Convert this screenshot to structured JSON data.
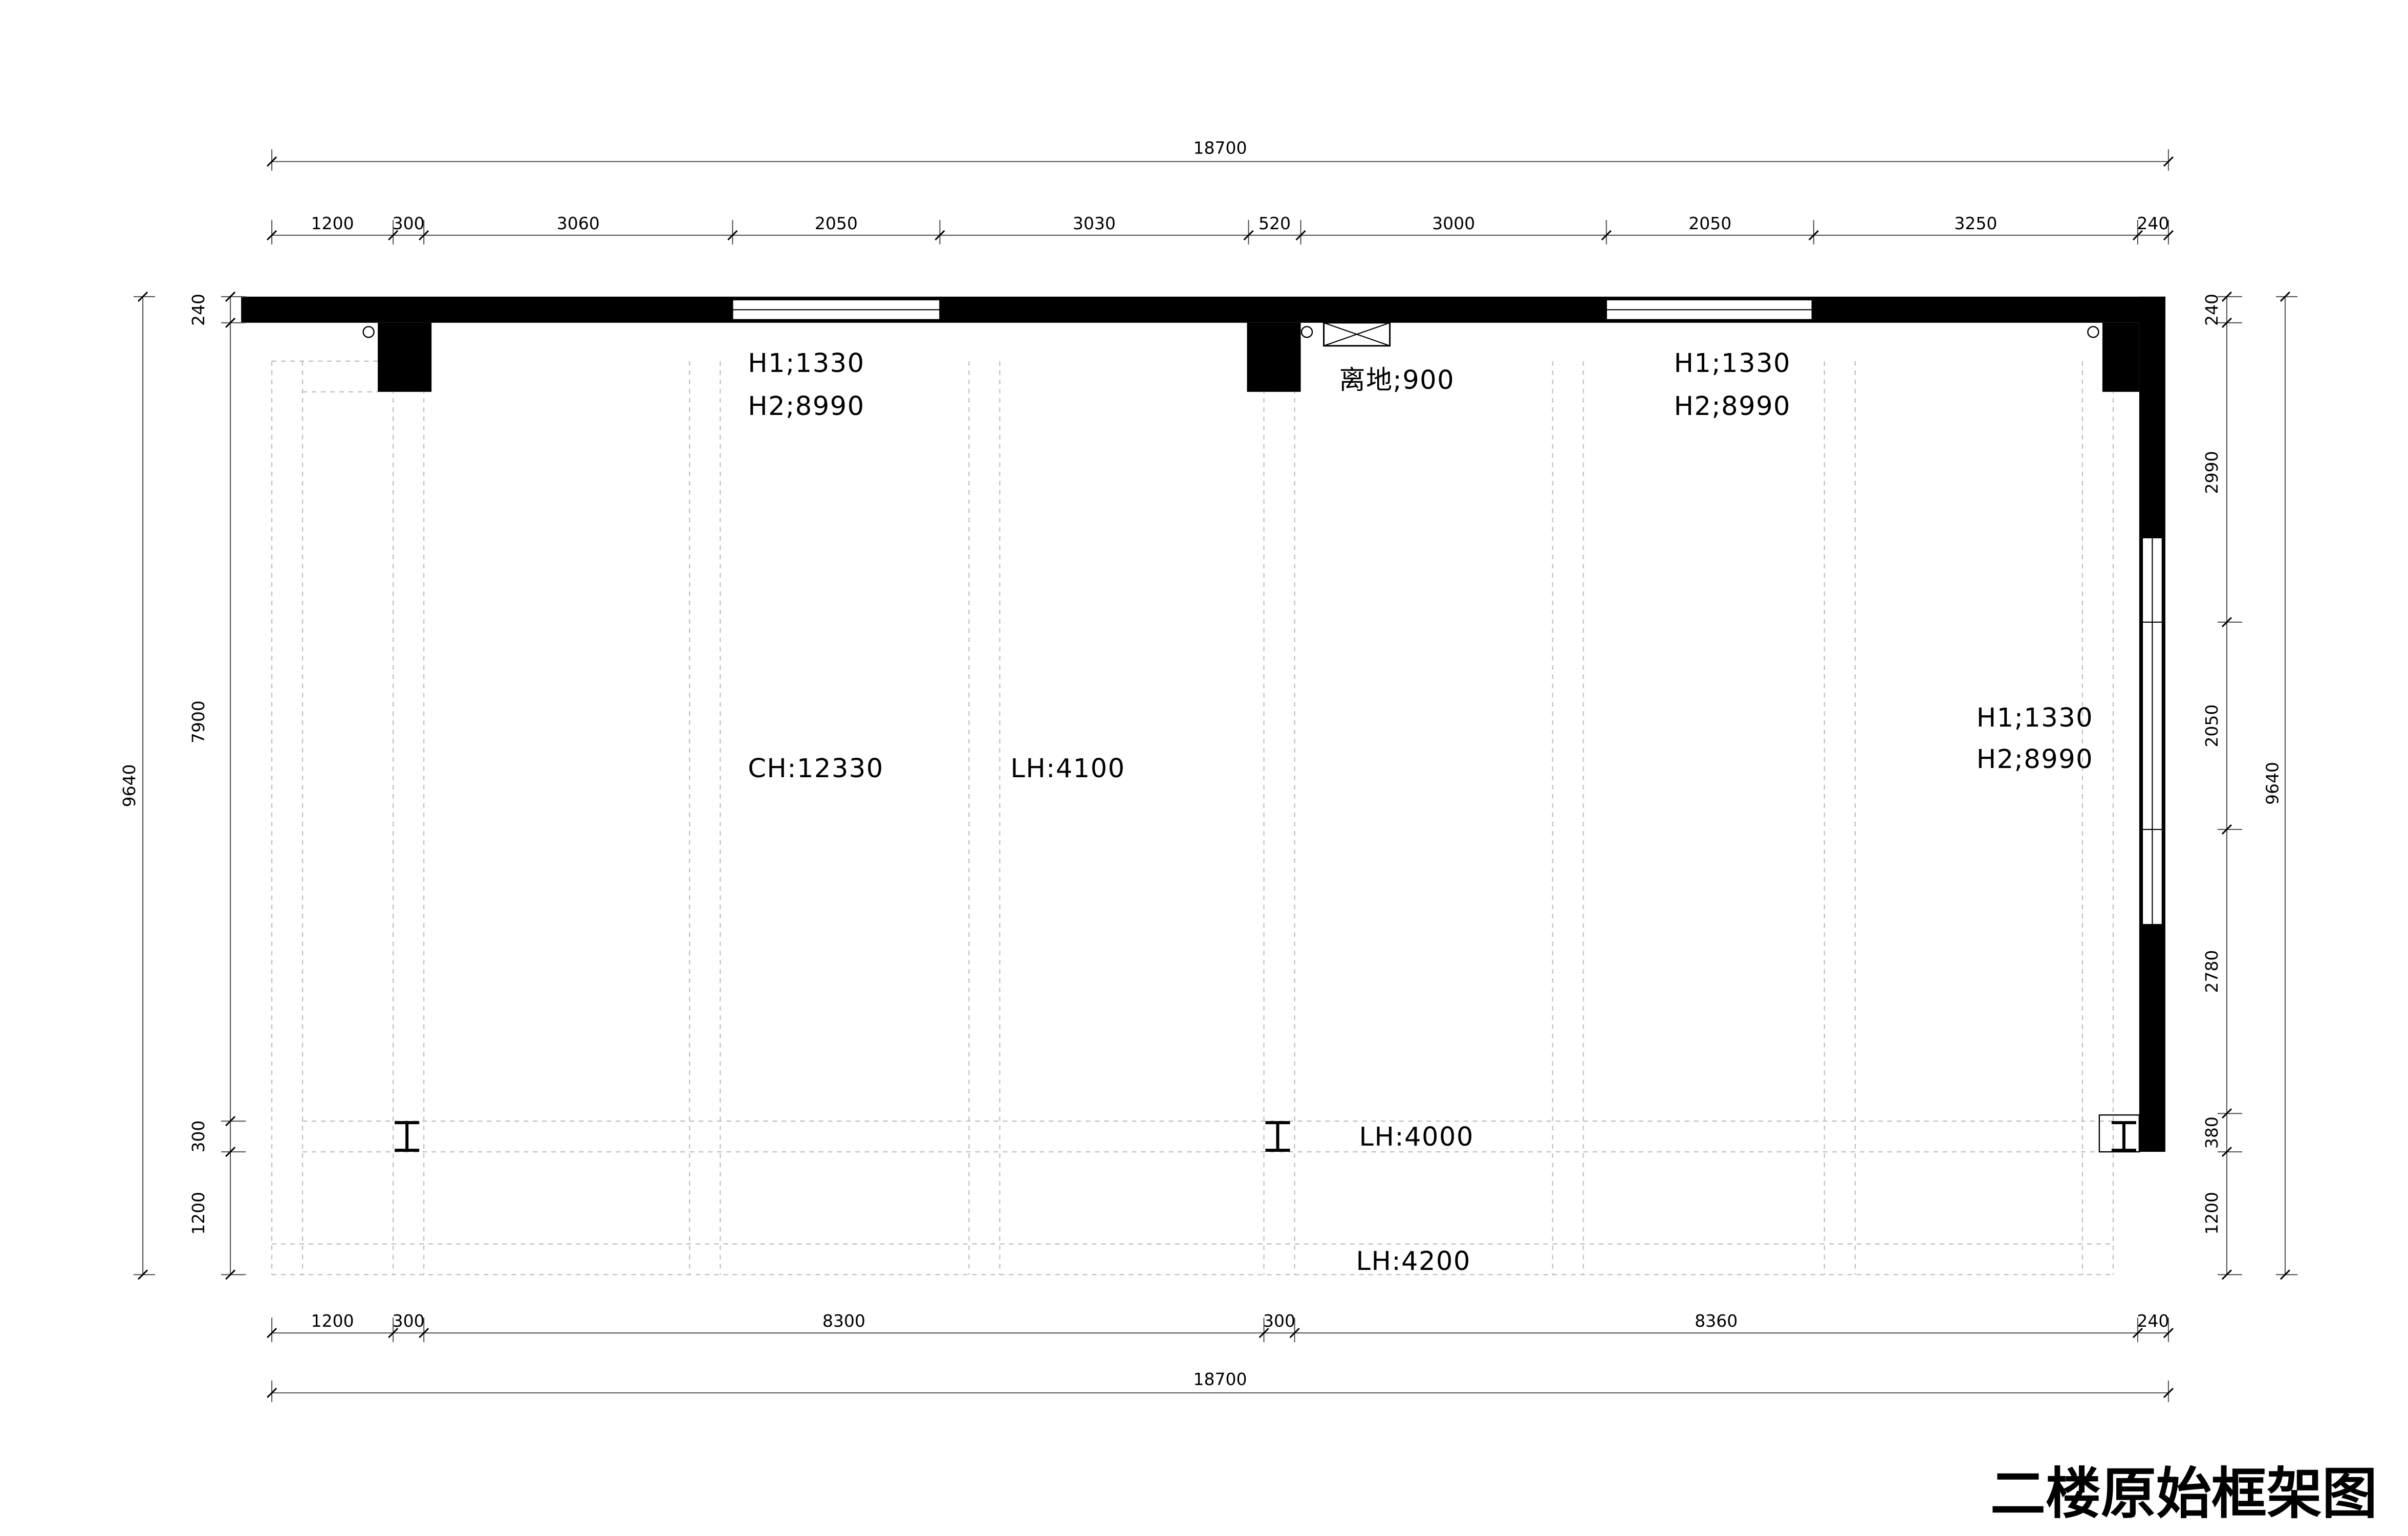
{
  "title": "二楼原始框架图",
  "top_dims": {
    "total": "18700",
    "segments": [
      "1200",
      "300",
      "3060",
      "2050",
      "3030",
      "520",
      "3000",
      "2050",
      "3250",
      "240"
    ]
  },
  "bottom_dims": {
    "total": "18700",
    "segments": [
      "1200",
      "300",
      "8300",
      "300",
      "8360",
      "240"
    ]
  },
  "left_dims": {
    "total": "9640",
    "segments": [
      "240",
      "7900",
      "300",
      "1200"
    ]
  },
  "right_dims": {
    "total": "9640",
    "segments": [
      "240",
      "2990",
      "2050",
      "2780",
      "380",
      "1200"
    ]
  },
  "annotations": [
    "H1;1330",
    "H2;8990",
    "H1;1330",
    "H2;8990",
    "H1;1330",
    "H2;8990",
    "离地;900",
    "CH:12330",
    "LH:4100",
    "LH:4000",
    "LH:4200"
  ]
}
